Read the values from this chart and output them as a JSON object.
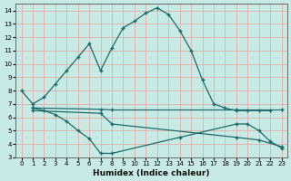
{
  "xlabel": "Humidex (Indice chaleur)",
  "xlim": [
    -0.5,
    23.5
  ],
  "ylim": [
    3,
    14.5
  ],
  "yticks": [
    3,
    4,
    5,
    6,
    7,
    8,
    9,
    10,
    11,
    12,
    13,
    14
  ],
  "xticks": [
    0,
    1,
    2,
    3,
    4,
    5,
    6,
    7,
    8,
    9,
    10,
    11,
    12,
    13,
    14,
    15,
    16,
    17,
    18,
    19,
    20,
    21,
    22,
    23
  ],
  "bg_color": "#c8eae5",
  "line_color": "#1a6b6b",
  "grid_color": "#e8a0a0",
  "line1_x": [
    0,
    1,
    2,
    3,
    4,
    5,
    6,
    7,
    8,
    9,
    10,
    11,
    12,
    13,
    14,
    15,
    16,
    17,
    18,
    19,
    20,
    21,
    22
  ],
  "line1_y": [
    8.0,
    7.0,
    7.5,
    8.5,
    9.5,
    10.5,
    11.5,
    9.5,
    11.2,
    12.7,
    13.2,
    13.8,
    14.2,
    13.7,
    12.5,
    11.0,
    8.8,
    7.0,
    6.7,
    6.5,
    6.5,
    6.5,
    6.5
  ],
  "line2_x": [
    1,
    2,
    3,
    4,
    5,
    6,
    7,
    8,
    14,
    19,
    20,
    21,
    22,
    23
  ],
  "line2_y": [
    6.7,
    6.5,
    6.2,
    5.7,
    5.0,
    4.4,
    3.3,
    3.3,
    4.5,
    5.5,
    5.5,
    5.0,
    4.2,
    3.7
  ],
  "line3_x": [
    1,
    7,
    8,
    19,
    23
  ],
  "line3_y": [
    6.7,
    6.6,
    6.55,
    6.55,
    6.55
  ],
  "line4_x": [
    1,
    7,
    8,
    19,
    21,
    23
  ],
  "line4_y": [
    6.5,
    6.3,
    5.5,
    4.5,
    4.3,
    3.8
  ]
}
